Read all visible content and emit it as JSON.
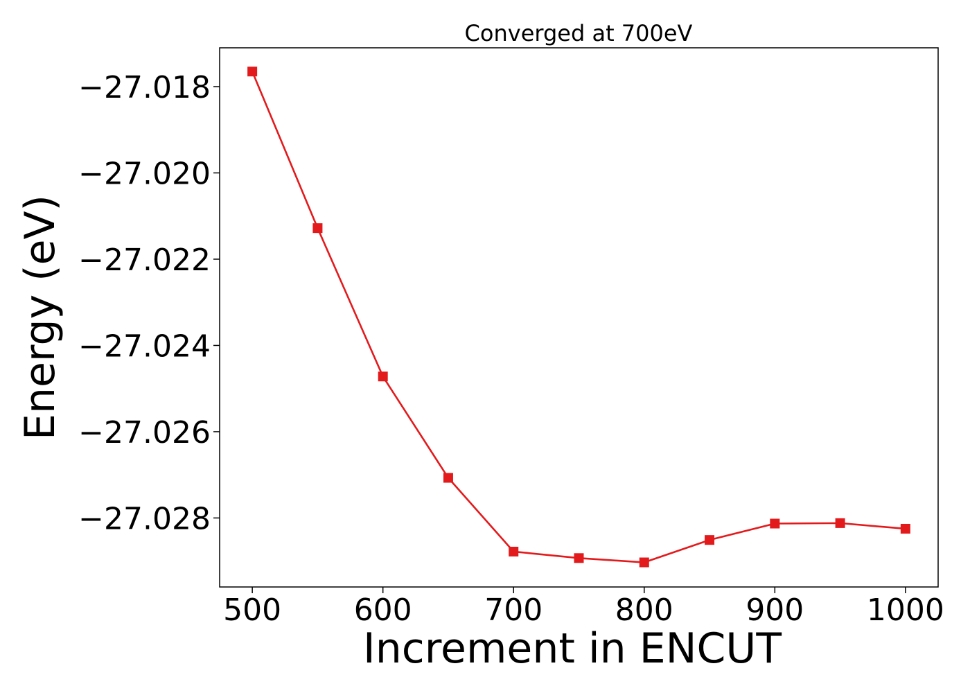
{
  "chart_data": {
    "type": "line",
    "title": "Converged at 700eV",
    "xlabel": "Increment in ENCUT",
    "ylabel": "Energy (eV)",
    "x": [
      500,
      550,
      600,
      650,
      700,
      750,
      800,
      850,
      900,
      950,
      1000
    ],
    "series": [
      {
        "color": "#e31a1c",
        "marker": "square",
        "values": [
          -27.01765,
          -27.02128,
          -27.02472,
          -27.02707,
          -27.02878,
          -27.02893,
          -27.02903,
          -27.02851,
          -27.02813,
          -27.02812,
          -27.02825
        ]
      }
    ],
    "xlim": [
      475,
      1025
    ],
    "ylim": [
      -27.0296,
      -27.0171
    ],
    "xticks": [
      500,
      600,
      700,
      800,
      900,
      1000
    ],
    "xtick_labels": [
      "500",
      "600",
      "700",
      "800",
      "900",
      "1000"
    ],
    "yticks": [
      -27.018,
      -27.02,
      -27.022,
      -27.024,
      -27.026,
      -27.028
    ],
    "ytick_labels": [
      "−27.018",
      "−27.020",
      "−27.022",
      "−27.024",
      "−27.026",
      "−27.028"
    ],
    "grid": false,
    "legend": false
  }
}
